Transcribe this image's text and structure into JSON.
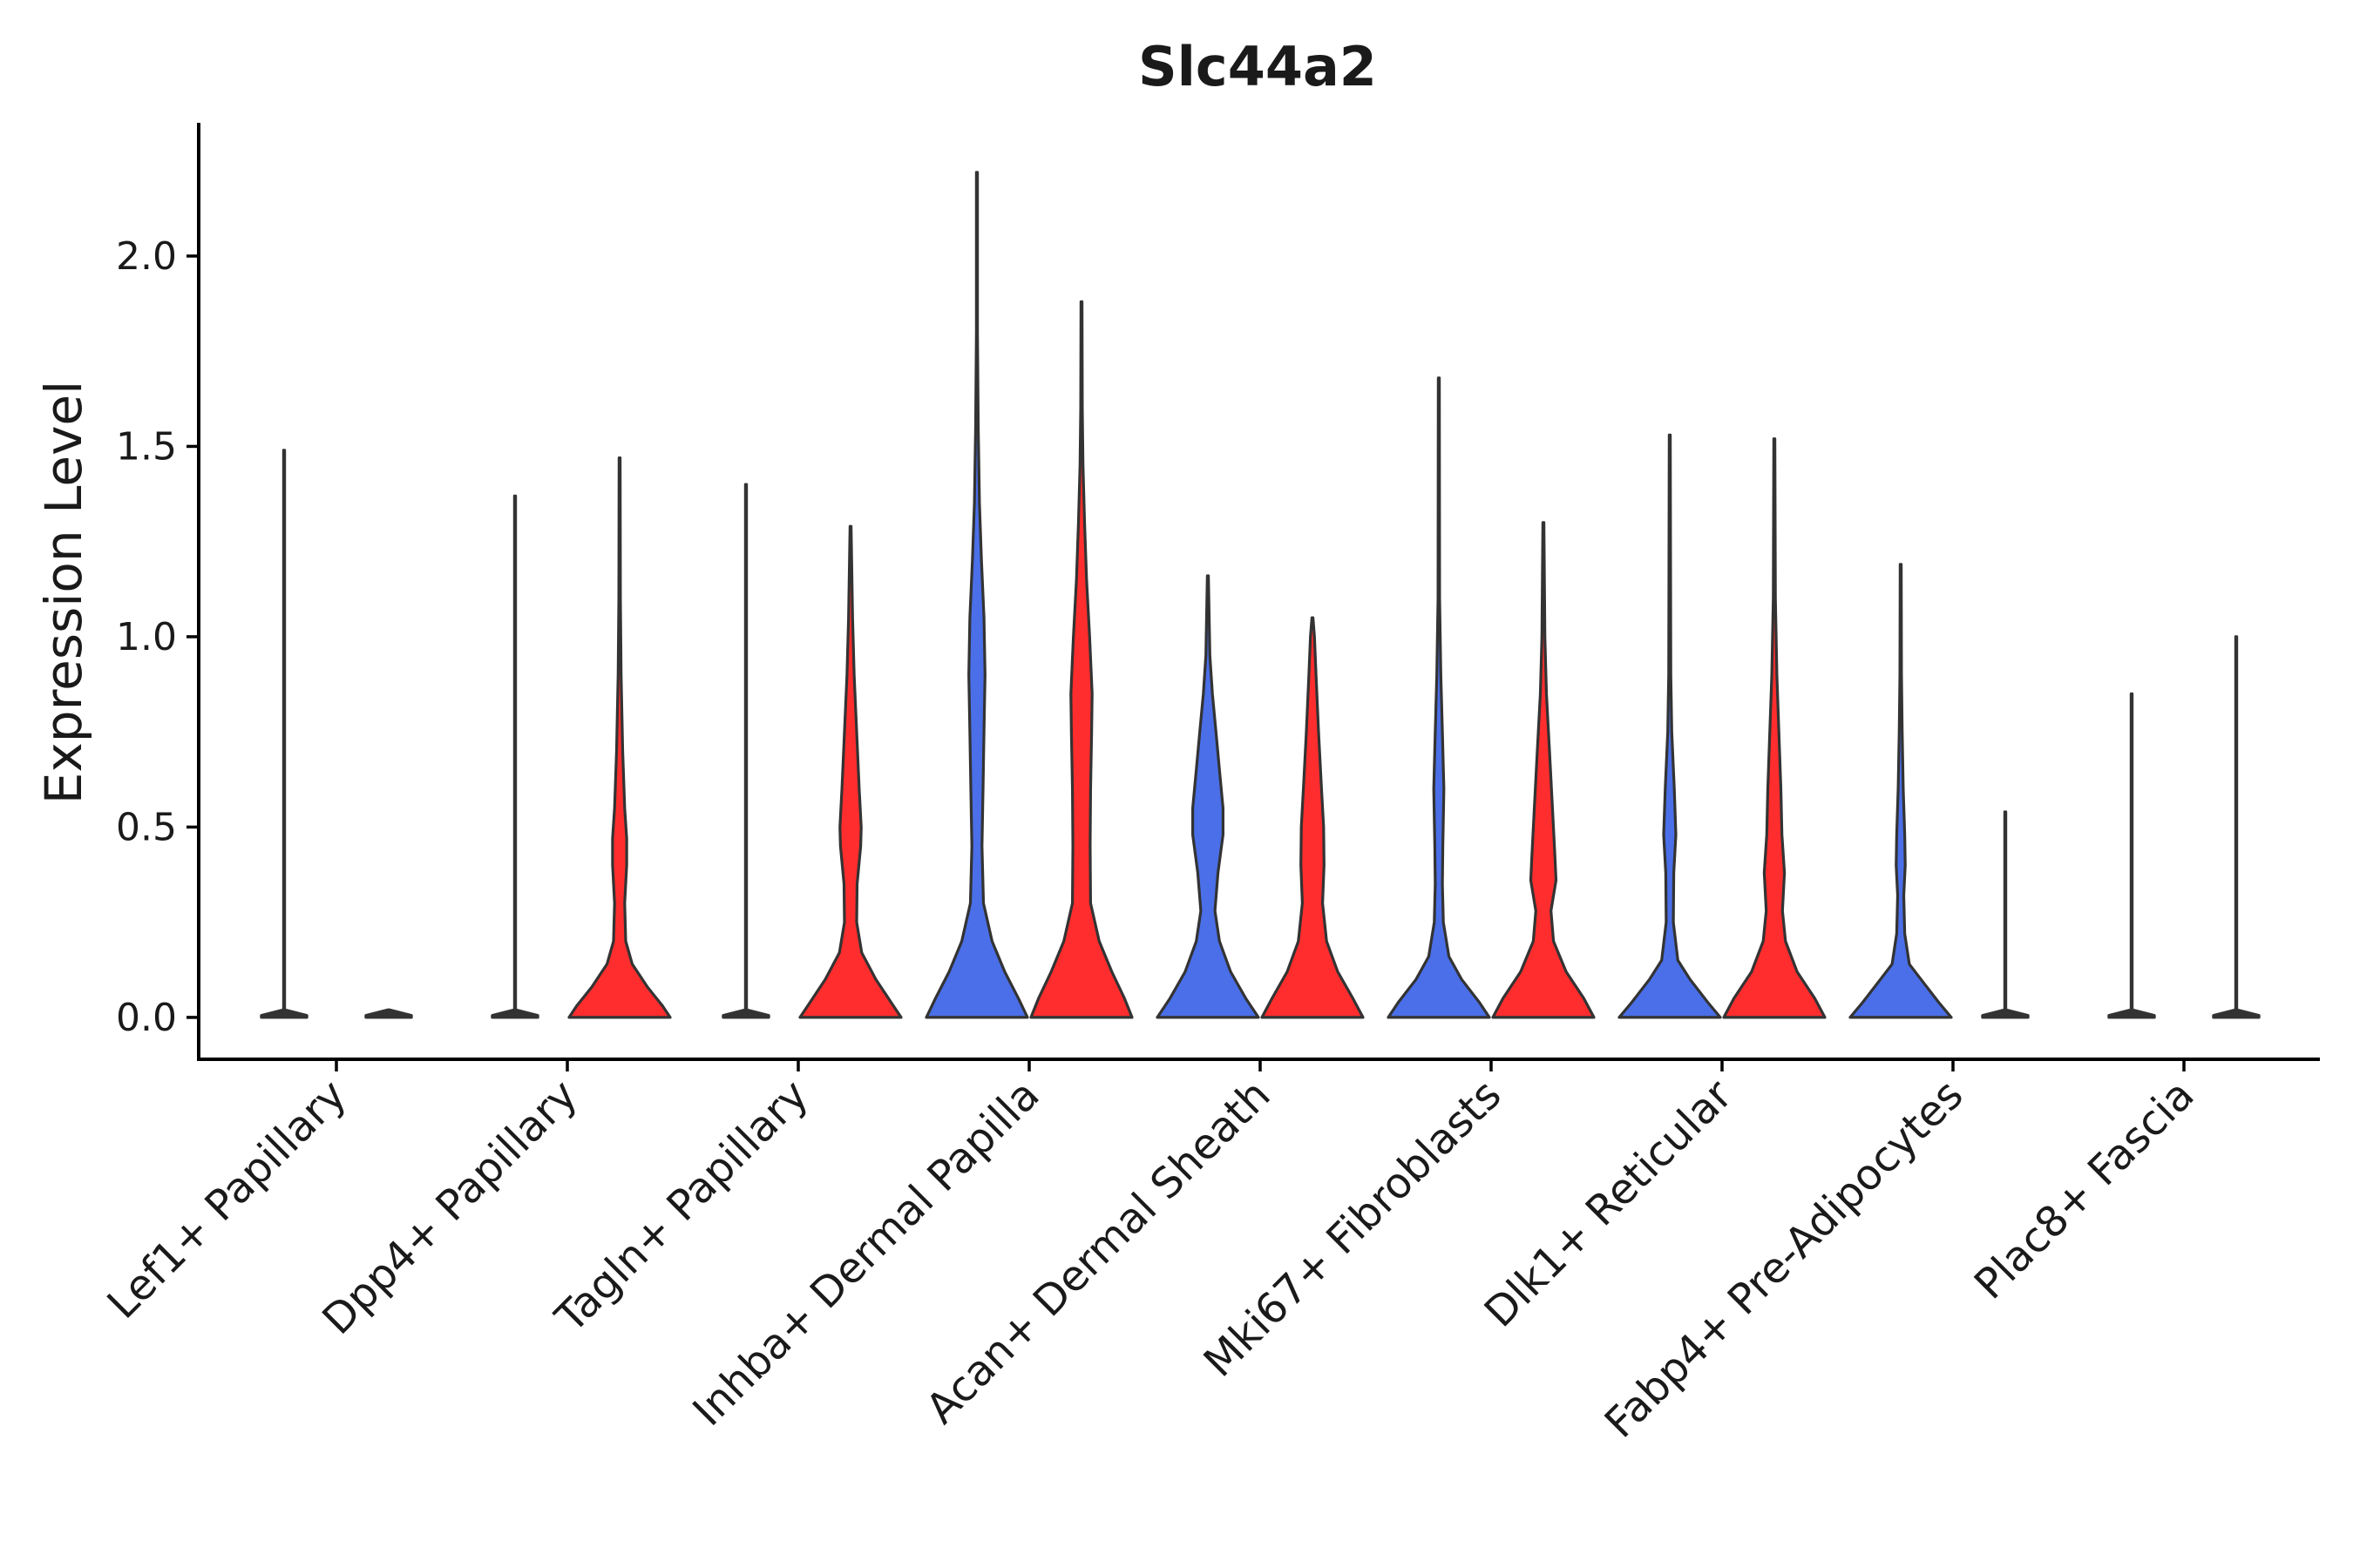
{
  "chart_data": {
    "type": "violin",
    "title": "Slc44a2",
    "xlabel": "",
    "ylabel": "Expression Level",
    "ylim": [
      -0.11,
      2.35
    ],
    "yticks": [
      0.0,
      0.5,
      1.0,
      1.5,
      2.0
    ],
    "ytick_labels": [
      "0.0",
      "0.5",
      "1.0",
      "1.5",
      "2.0"
    ],
    "categories": [
      "Lef1+ Papillary",
      "Dpp4+ Papillary",
      "Tagln+ Papillary",
      "Inhba+ Dermal Papilla",
      "Acan+ Dermal Sheath",
      "Mki67+ Fibroblasts",
      "Dlk1+ Reticular",
      "Fabp4+ Pre-Adipocytes",
      "Plac8+ Fascia"
    ],
    "groups": [
      {
        "name": "group 1",
        "color": "#4a6fe8"
      },
      {
        "name": "group 2",
        "color": "#ff2d2d"
      }
    ],
    "violins": [
      {
        "category": 0,
        "group": 0,
        "max": 1.49,
        "profile": [
          [
            0,
            0.45
          ],
          [
            0.005,
            0.45
          ],
          [
            0.02,
            0.01
          ],
          [
            1.49,
            0.01
          ]
        ]
      },
      {
        "category": 0,
        "group": 1,
        "max": 0.0,
        "profile": [
          [
            0,
            0.45
          ],
          [
            0.005,
            0.45
          ],
          [
            0.02,
            0.01
          ]
        ]
      },
      {
        "category": 1,
        "group": 0,
        "max": 1.37,
        "profile": [
          [
            0,
            0.45
          ],
          [
            0.005,
            0.45
          ],
          [
            0.02,
            0.01
          ],
          [
            1.37,
            0.01
          ]
        ]
      },
      {
        "category": 1,
        "group": 1,
        "max": 1.47,
        "profile": [
          [
            0,
            1.0
          ],
          [
            0.03,
            0.85
          ],
          [
            0.08,
            0.55
          ],
          [
            0.14,
            0.25
          ],
          [
            0.2,
            0.12
          ],
          [
            0.3,
            0.1
          ],
          [
            0.4,
            0.14
          ],
          [
            0.47,
            0.14
          ],
          [
            0.55,
            0.1
          ],
          [
            0.7,
            0.06
          ],
          [
            0.9,
            0.03
          ],
          [
            1.1,
            0.015
          ],
          [
            1.47,
            0.01
          ]
        ]
      },
      {
        "category": 2,
        "group": 0,
        "max": 1.4,
        "profile": [
          [
            0,
            0.45
          ],
          [
            0.005,
            0.45
          ],
          [
            0.02,
            0.01
          ],
          [
            1.4,
            0.01
          ]
        ]
      },
      {
        "category": 2,
        "group": 1,
        "max": 1.29,
        "profile": [
          [
            0,
            1.0
          ],
          [
            0.04,
            0.8
          ],
          [
            0.1,
            0.5
          ],
          [
            0.17,
            0.22
          ],
          [
            0.25,
            0.12
          ],
          [
            0.35,
            0.13
          ],
          [
            0.45,
            0.2
          ],
          [
            0.5,
            0.21
          ],
          [
            0.6,
            0.17
          ],
          [
            0.75,
            0.12
          ],
          [
            0.9,
            0.07
          ],
          [
            1.05,
            0.04
          ],
          [
            1.29,
            0.01
          ]
        ]
      },
      {
        "category": 3,
        "group": 0,
        "max": 2.22,
        "profile": [
          [
            0,
            1.0
          ],
          [
            0.05,
            0.82
          ],
          [
            0.12,
            0.55
          ],
          [
            0.2,
            0.3
          ],
          [
            0.3,
            0.13
          ],
          [
            0.45,
            0.1
          ],
          [
            0.6,
            0.12
          ],
          [
            0.75,
            0.14
          ],
          [
            0.9,
            0.16
          ],
          [
            1.05,
            0.14
          ],
          [
            1.2,
            0.09
          ],
          [
            1.35,
            0.05
          ],
          [
            1.55,
            0.025
          ],
          [
            1.8,
            0.01
          ],
          [
            2.22,
            0.01
          ]
        ]
      },
      {
        "category": 3,
        "group": 1,
        "max": 1.88,
        "profile": [
          [
            0,
            1.0
          ],
          [
            0.05,
            0.85
          ],
          [
            0.12,
            0.6
          ],
          [
            0.2,
            0.35
          ],
          [
            0.3,
            0.18
          ],
          [
            0.45,
            0.17
          ],
          [
            0.6,
            0.18
          ],
          [
            0.75,
            0.2
          ],
          [
            0.85,
            0.21
          ],
          [
            1.0,
            0.16
          ],
          [
            1.15,
            0.1
          ],
          [
            1.3,
            0.06
          ],
          [
            1.45,
            0.03
          ],
          [
            1.6,
            0.015
          ],
          [
            1.88,
            0.01
          ]
        ]
      },
      {
        "category": 4,
        "group": 0,
        "max": 1.16,
        "profile": [
          [
            0,
            1.0
          ],
          [
            0.05,
            0.75
          ],
          [
            0.12,
            0.45
          ],
          [
            0.2,
            0.23
          ],
          [
            0.28,
            0.14
          ],
          [
            0.38,
            0.2
          ],
          [
            0.48,
            0.3
          ],
          [
            0.55,
            0.3
          ],
          [
            0.65,
            0.23
          ],
          [
            0.75,
            0.16
          ],
          [
            0.85,
            0.09
          ],
          [
            0.95,
            0.04
          ],
          [
            1.16,
            0.01
          ]
        ]
      },
      {
        "category": 4,
        "group": 1,
        "max": 1.05,
        "profile": [
          [
            0,
            1.0
          ],
          [
            0.05,
            0.8
          ],
          [
            0.12,
            0.5
          ],
          [
            0.2,
            0.28
          ],
          [
            0.3,
            0.2
          ],
          [
            0.4,
            0.23
          ],
          [
            0.5,
            0.22
          ],
          [
            0.6,
            0.18
          ],
          [
            0.75,
            0.12
          ],
          [
            0.9,
            0.07
          ],
          [
            1.0,
            0.04
          ],
          [
            1.05,
            0.01
          ]
        ]
      },
      {
        "category": 5,
        "group": 0,
        "max": 1.68,
        "profile": [
          [
            0,
            1.0
          ],
          [
            0.04,
            0.8
          ],
          [
            0.1,
            0.45
          ],
          [
            0.16,
            0.2
          ],
          [
            0.25,
            0.09
          ],
          [
            0.35,
            0.07
          ],
          [
            0.45,
            0.08
          ],
          [
            0.6,
            0.1
          ],
          [
            0.75,
            0.07
          ],
          [
            0.9,
            0.04
          ],
          [
            1.1,
            0.015
          ],
          [
            1.68,
            0.01
          ]
        ]
      },
      {
        "category": 5,
        "group": 1,
        "max": 1.3,
        "profile": [
          [
            0,
            1.0
          ],
          [
            0.05,
            0.8
          ],
          [
            0.12,
            0.45
          ],
          [
            0.2,
            0.2
          ],
          [
            0.28,
            0.15
          ],
          [
            0.36,
            0.25
          ],
          [
            0.42,
            0.23
          ],
          [
            0.55,
            0.18
          ],
          [
            0.7,
            0.12
          ],
          [
            0.85,
            0.06
          ],
          [
            1.0,
            0.03
          ],
          [
            1.3,
            0.01
          ]
        ]
      },
      {
        "category": 6,
        "group": 0,
        "max": 1.53,
        "profile": [
          [
            0,
            1.0
          ],
          [
            0.04,
            0.75
          ],
          [
            0.1,
            0.4
          ],
          [
            0.15,
            0.16
          ],
          [
            0.25,
            0.07
          ],
          [
            0.38,
            0.08
          ],
          [
            0.48,
            0.12
          ],
          [
            0.6,
            0.09
          ],
          [
            0.75,
            0.04
          ],
          [
            0.9,
            0.02
          ],
          [
            1.53,
            0.01
          ]
        ]
      },
      {
        "category": 6,
        "group": 1,
        "max": 1.52,
        "profile": [
          [
            0,
            1.0
          ],
          [
            0.05,
            0.8
          ],
          [
            0.12,
            0.45
          ],
          [
            0.2,
            0.22
          ],
          [
            0.28,
            0.16
          ],
          [
            0.38,
            0.2
          ],
          [
            0.48,
            0.15
          ],
          [
            0.6,
            0.13
          ],
          [
            0.75,
            0.09
          ],
          [
            0.9,
            0.05
          ],
          [
            1.1,
            0.02
          ],
          [
            1.52,
            0.01
          ]
        ]
      },
      {
        "category": 7,
        "group": 0,
        "max": 1.19,
        "profile": [
          [
            0,
            1.0
          ],
          [
            0.04,
            0.75
          ],
          [
            0.1,
            0.4
          ],
          [
            0.14,
            0.17
          ],
          [
            0.22,
            0.08
          ],
          [
            0.32,
            0.06
          ],
          [
            0.4,
            0.09
          ],
          [
            0.48,
            0.08
          ],
          [
            0.6,
            0.05
          ],
          [
            0.75,
            0.03
          ],
          [
            0.9,
            0.015
          ],
          [
            1.19,
            0.01
          ]
        ]
      },
      {
        "category": 7,
        "group": 1,
        "max": 0.54,
        "profile": [
          [
            0,
            0.45
          ],
          [
            0.005,
            0.45
          ],
          [
            0.02,
            0.01
          ],
          [
            0.54,
            0.01
          ]
        ]
      },
      {
        "category": 8,
        "group": 0,
        "max": 0.85,
        "profile": [
          [
            0,
            0.45
          ],
          [
            0.005,
            0.45
          ],
          [
            0.02,
            0.01
          ],
          [
            0.85,
            0.01
          ]
        ]
      },
      {
        "category": 8,
        "group": 1,
        "max": 1.0,
        "profile": [
          [
            0,
            0.45
          ],
          [
            0.005,
            0.45
          ],
          [
            0.02,
            0.01
          ],
          [
            1.0,
            0.01
          ]
        ]
      }
    ]
  }
}
